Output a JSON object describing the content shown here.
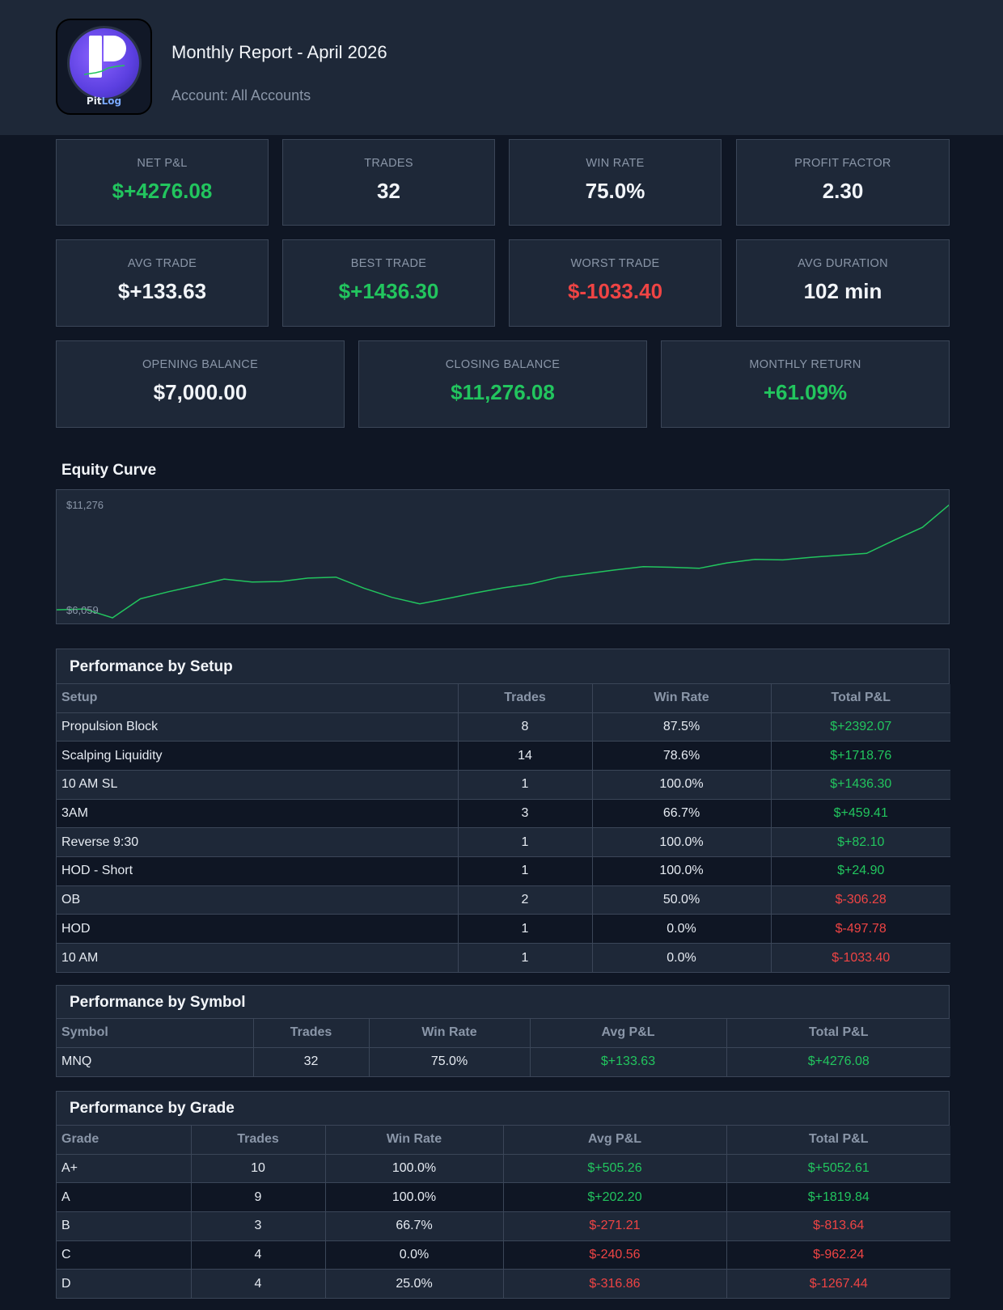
{
  "header": {
    "title": "Monthly Report - April 2026",
    "subtitle": "Account: All Accounts",
    "logo_text_a": "Pit",
    "logo_text_b": "Log"
  },
  "stats": {
    "net_pnl": {
      "label": "NET P&L",
      "value": "$+4276.08"
    },
    "trades": {
      "label": "TRADES",
      "value": "32"
    },
    "win_rate": {
      "label": "WIN RATE",
      "value": "75.0%"
    },
    "profit_factor": {
      "label": "PROFIT FACTOR",
      "value": "2.30"
    },
    "avg_trade": {
      "label": "AVG TRADE",
      "value": "$+133.63"
    },
    "best_trade": {
      "label": "BEST TRADE",
      "value": "$+1436.30"
    },
    "worst_trade": {
      "label": "WORST TRADE",
      "value": "$-1033.40"
    },
    "avg_duration": {
      "label": "AVG DURATION",
      "value": "102 min"
    },
    "opening_balance": {
      "label": "OPENING BALANCE",
      "value": "$7,000.00"
    },
    "closing_balance": {
      "label": "CLOSING BALANCE",
      "value": "$11,276.08"
    },
    "monthly_return": {
      "label": "MONTHLY RETURN",
      "value": "+61.09%"
    }
  },
  "colors": {
    "positive": "#22c55e",
    "negative": "#ef4444",
    "panel": "#1e2838",
    "background": "#0f1624"
  },
  "equity": {
    "title": "Equity Curve",
    "max_label": "$11,276",
    "min_label": "$6,059"
  },
  "chart_data": {
    "type": "line",
    "title": "Equity Curve",
    "ylim": [
      6059,
      11276
    ],
    "y_tick_labels": [
      "$11,276",
      "$6,059"
    ],
    "series": [
      {
        "values": [
          6424,
          6462,
          6059,
          6930,
          7252,
          7535,
          7830,
          7697,
          7719,
          7877,
          7919,
          7417,
          6996,
          6700,
          6945,
          7204,
          7432,
          7615,
          7919,
          8084,
          8251,
          8401,
          8371,
          8325,
          8570,
          8731,
          8710,
          8825,
          8915,
          9008,
          9620,
          10200,
          11276
        ]
      }
    ]
  },
  "setup_table": {
    "title": "Performance by Setup",
    "columns": [
      "Setup",
      "Trades",
      "Win Rate",
      "Total P&L"
    ],
    "rows": [
      [
        "Propulsion Block",
        "8",
        "87.5%",
        "$+2392.07"
      ],
      [
        "Scalping Liquidity",
        "14",
        "78.6%",
        "$+1718.76"
      ],
      [
        "10 AM SL",
        "1",
        "100.0%",
        "$+1436.30"
      ],
      [
        "3AM",
        "3",
        "66.7%",
        "$+459.41"
      ],
      [
        "Reverse 9:30",
        "1",
        "100.0%",
        "$+82.10"
      ],
      [
        "HOD - Short",
        "1",
        "100.0%",
        "$+24.90"
      ],
      [
        "OB",
        "2",
        "50.0%",
        "$-306.28"
      ],
      [
        "HOD",
        "1",
        "0.0%",
        "$-497.78"
      ],
      [
        "10 AM",
        "1",
        "0.0%",
        "$-1033.40"
      ]
    ]
  },
  "symbol_table": {
    "title": "Performance by Symbol",
    "columns": [
      "Symbol",
      "Trades",
      "Win Rate",
      "Avg P&L",
      "Total P&L"
    ],
    "rows": [
      [
        "MNQ",
        "32",
        "75.0%",
        "$+133.63",
        "$+4276.08"
      ]
    ]
  },
  "grade_table": {
    "title": "Performance by Grade",
    "columns": [
      "Grade",
      "Trades",
      "Win Rate",
      "Avg P&L",
      "Total P&L"
    ],
    "rows": [
      [
        "A+",
        "10",
        "100.0%",
        "$+505.26",
        "$+5052.61"
      ],
      [
        "A",
        "9",
        "100.0%",
        "$+202.20",
        "$+1819.84"
      ],
      [
        "B",
        "3",
        "66.7%",
        "$-271.21",
        "$-813.64"
      ],
      [
        "C",
        "4",
        "0.0%",
        "$-240.56",
        "$-962.24"
      ],
      [
        "D",
        "4",
        "25.0%",
        "$-316.86",
        "$-1267.44"
      ]
    ]
  }
}
